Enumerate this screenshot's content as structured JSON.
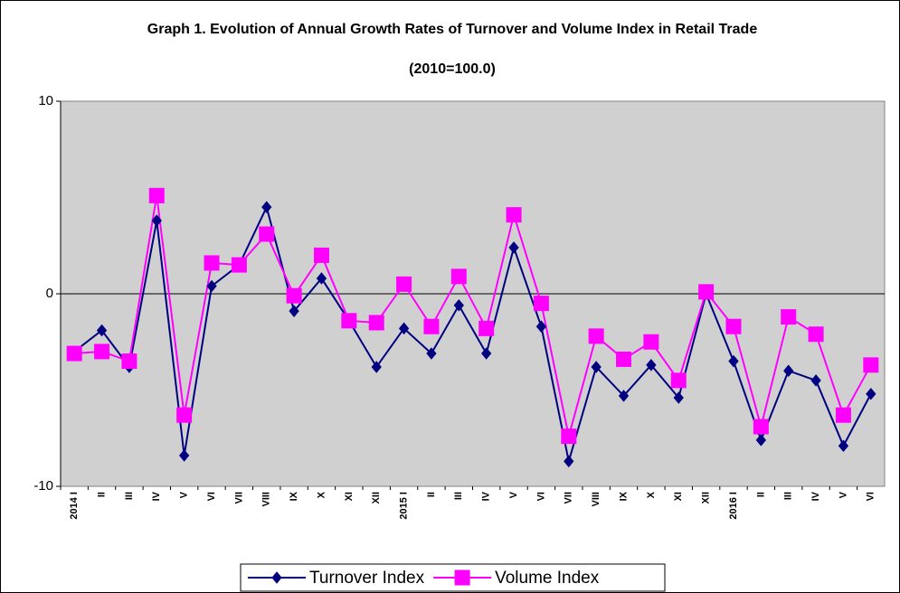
{
  "chart_data": {
    "type": "line",
    "title": "Graph 1. Evolution of Annual Growth Rates of Turnover and Volume Index in Retail Trade",
    "subtitle": "(2010=100.0)",
    "categories": [
      "2014 I",
      "II",
      "III",
      "IV",
      "V",
      "VI",
      "VII",
      "VIII",
      "IX",
      "X",
      "XI",
      "XII",
      "2015 I",
      "II",
      "III",
      "IV",
      "V",
      "VI",
      "VII",
      "VIII",
      "IX",
      "X",
      "XI",
      "XII",
      "2016 I",
      "II",
      "III",
      "IV",
      "V",
      "VI"
    ],
    "series": [
      {
        "name": "Turnover Index",
        "color": "#000080",
        "marker": "diamond",
        "values": [
          -3.0,
          -1.9,
          -3.8,
          3.8,
          -8.4,
          0.4,
          1.5,
          4.5,
          -0.9,
          0.8,
          -1.4,
          -3.8,
          -1.8,
          -3.1,
          -0.6,
          -3.1,
          2.4,
          -1.7,
          -8.7,
          -3.8,
          -5.3,
          -3.7,
          -5.4,
          0.0,
          -3.5,
          -7.6,
          -4.0,
          -4.5,
          -7.9,
          -5.2
        ]
      },
      {
        "name": "Volume Index",
        "color": "#ff00ff",
        "marker": "square",
        "values": [
          -3.1,
          -3.0,
          -3.5,
          5.1,
          -6.3,
          1.6,
          1.5,
          3.1,
          -0.1,
          2.0,
          -1.4,
          -1.5,
          0.5,
          -1.7,
          0.9,
          -1.8,
          4.1,
          -0.5,
          -7.4,
          -2.2,
          -3.4,
          -2.5,
          -4.5,
          0.1,
          -1.7,
          -6.9,
          -1.2,
          -2.1,
          -6.3,
          -3.7
        ]
      }
    ],
    "ylim": [
      -10,
      10
    ],
    "yticks": [
      -10,
      0,
      10
    ],
    "legend": "bottom"
  }
}
